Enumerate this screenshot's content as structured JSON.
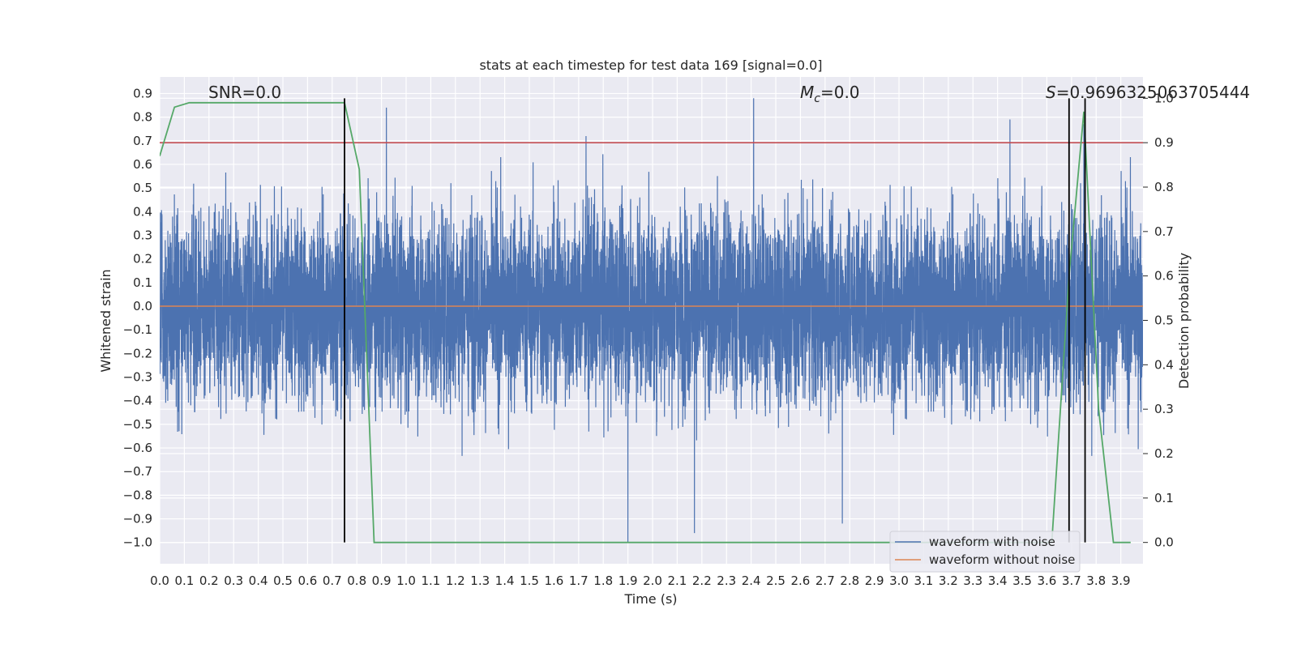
{
  "chart_data": {
    "type": "line",
    "title": "stats at each timestep for test data 169 [signal=0.0]",
    "xlabel": "Time (s)",
    "ylabel_left": "Whitened strain",
    "ylabel_right": "Detection probability",
    "xlim": [
      0.0,
      3.99
    ],
    "ylim_left": [
      -1.09,
      0.97
    ],
    "ylim_right": [
      -0.048,
      1.048
    ],
    "x_ticks": [
      "0.0",
      "0.1",
      "0.2",
      "0.3",
      "0.4",
      "0.5",
      "0.6",
      "0.7",
      "0.8",
      "0.9",
      "1.0",
      "1.1",
      "1.2",
      "1.3",
      "1.4",
      "1.5",
      "1.6",
      "1.7",
      "1.8",
      "1.9",
      "2.0",
      "2.1",
      "2.2",
      "2.3",
      "2.4",
      "2.5",
      "2.6",
      "2.7",
      "2.8",
      "2.9",
      "3.0",
      "3.1",
      "3.2",
      "3.3",
      "3.4",
      "3.5",
      "3.6",
      "3.7",
      "3.8",
      "3.9"
    ],
    "y_ticks_left": [
      "0.9",
      "0.8",
      "0.7",
      "0.6",
      "0.5",
      "0.4",
      "0.3",
      "0.2",
      "0.1",
      "0.0",
      "−0.1",
      "−0.2",
      "−0.3",
      "−0.4",
      "−0.5",
      "−0.6",
      "−0.7",
      "−0.8",
      "−0.9",
      "−1.0"
    ],
    "y_ticks_right": [
      "1.0",
      "0.9",
      "0.8",
      "0.7",
      "0.6",
      "0.5",
      "0.4",
      "0.3",
      "0.2",
      "0.1",
      "0.0"
    ],
    "annotations": {
      "snr": "SNR=0.0",
      "mc_symbol": "M",
      "mc_sub": "c",
      "mc_value": "=0.0",
      "s_symbol": "S",
      "s_value": "=0.9696325063705444"
    },
    "series": [
      {
        "name": "waveform with noise",
        "color": "#4c72b0",
        "axis": "left",
        "sample_rate": 2048,
        "amplitude_std": 0.2,
        "peaks": [
          {
            "t": 0.92,
            "v": 0.84
          },
          {
            "t": 1.73,
            "v": 0.72
          },
          {
            "t": 1.9,
            "v": -1.0
          },
          {
            "t": 2.17,
            "v": -0.96
          },
          {
            "t": 2.41,
            "v": 0.88
          },
          {
            "t": 2.77,
            "v": -0.92
          },
          {
            "t": 3.45,
            "v": 0.79
          },
          {
            "t": 3.75,
            "v": 0.77
          }
        ]
      },
      {
        "name": "waveform without noise",
        "color": "#dd8452",
        "axis": "left",
        "x": [
          0.0,
          3.99
        ],
        "y": [
          0.0,
          0.0
        ]
      },
      {
        "name": "detection probability",
        "color": "#55a868",
        "axis": "right",
        "x": [
          0.0,
          0.06,
          0.12,
          0.19,
          0.25,
          0.31,
          0.38,
          0.44,
          0.5,
          0.56,
          0.62,
          0.69,
          0.75,
          0.81,
          0.87,
          0.94,
          1.0,
          3.62,
          3.69,
          3.75,
          3.81,
          3.87,
          3.94
        ],
        "y": [
          0.87,
          0.98,
          0.99,
          0.99,
          0.99,
          0.99,
          0.99,
          0.99,
          0.99,
          0.99,
          0.99,
          0.99,
          0.99,
          0.84,
          0.0,
          0.0,
          0.0,
          0.0,
          0.6,
          0.97,
          0.3,
          0.0,
          0.0
        ]
      }
    ],
    "threshold_line": {
      "value": 0.9,
      "axis": "right",
      "color": "#c44e52"
    },
    "vertical_markers": [
      0.75,
      3.69,
      3.755
    ],
    "vertical_marker_range": [
      0.0,
      1.0
    ],
    "legend": {
      "position": "bottom-right",
      "entries": [
        "waveform with noise",
        "waveform without noise"
      ]
    }
  }
}
